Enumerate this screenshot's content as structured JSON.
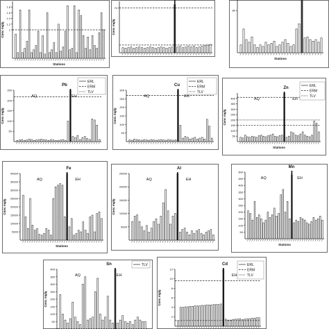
{
  "charts": [
    {
      "id": "p1",
      "type": "bar",
      "title": "",
      "xlabel": "Stations",
      "ylabel": "Conc mg/g",
      "ylim": [
        0,
        2
      ],
      "yticks": [
        "1",
        "1.2",
        "1.4",
        "1.6",
        "1.8"
      ],
      "tick_values": [
        1,
        1.2,
        1.4,
        1.6,
        1.8
      ],
      "divider_x_index": -1,
      "region_labels": [],
      "legend": [],
      "ref_lines": [
        {
          "y": 1.0,
          "style": "dashed"
        }
      ],
      "values": [
        0.85,
        0.2,
        1.7,
        0.2,
        0.35,
        0.6,
        1.7,
        0.2,
        0.3,
        0.45,
        0.95,
        0.2,
        0.8,
        0.15,
        1.6,
        0.2,
        0.3,
        0.55,
        0.2,
        1.2,
        0.25,
        0.4,
        0.95,
        1.85,
        0.3,
        0.35,
        1.85,
        0.2,
        1.7,
        1.5,
        0.8,
        0.35,
        0.75,
        0.3,
        0.8,
        0.45,
        0.35,
        0.9,
        1.6,
        1.0
      ]
    },
    {
      "id": "p2",
      "type": "bar",
      "title": "",
      "xlabel": "",
      "ylabel": "Conc mg/g",
      "ylim": [
        0,
        80
      ],
      "yticks": [
        "70"
      ],
      "tick_values": [
        70
      ],
      "divider_x_index": 19,
      "region_labels": [],
      "legend": [],
      "ref_lines": [
        {
          "y": 70,
          "style": "dashed"
        },
        {
          "y": 12,
          "style": "dashed"
        }
      ],
      "values": [
        8,
        7,
        8,
        9,
        7,
        8,
        9,
        8,
        7,
        8,
        9,
        8,
        7,
        8,
        9,
        8,
        7,
        8,
        9,
        75,
        9,
        10,
        8,
        9,
        10,
        9,
        10,
        8,
        9,
        10,
        11,
        12,
        13
      ]
    },
    {
      "id": "p3",
      "type": "bar",
      "title": "",
      "xlabel": "Stations",
      "ylabel": "",
      "ylim": [
        0,
        100
      ],
      "yticks": [
        "80"
      ],
      "tick_values": [
        80
      ],
      "divider_x_index": 22,
      "region_labels": [],
      "legend": [],
      "ref_lines": [],
      "values": [
        15,
        45,
        25,
        20,
        30,
        15,
        10,
        15,
        12,
        20,
        15,
        18,
        22,
        12,
        15,
        20,
        25,
        18,
        12,
        15,
        45,
        55,
        100,
        28,
        30,
        25,
        22,
        25,
        20,
        28
      ]
    },
    {
      "id": "p4",
      "type": "bar",
      "title": "Pb",
      "xlabel": "",
      "ylabel": "Conc mg/g",
      "ylim": [
        0,
        250
      ],
      "yticks": [
        "50",
        "100",
        "150",
        "200",
        "250"
      ],
      "tick_values": [
        50,
        100,
        150,
        200,
        250
      ],
      "divider_x_index": 22,
      "region_labels": [
        "AQ",
        "EH"
      ],
      "legend": [
        "ERL",
        "ERM",
        "TLV"
      ],
      "ref_lines": [
        {
          "y": 218,
          "style": "dashed"
        }
      ],
      "values": [
        5,
        8,
        10,
        6,
        8,
        12,
        10,
        6,
        8,
        10,
        12,
        10,
        8,
        6,
        10,
        8,
        5,
        6,
        8,
        10,
        5,
        100,
        250,
        25,
        20,
        30,
        10,
        20,
        25,
        15,
        10,
        110,
        105,
        80,
        10
      ]
    },
    {
      "id": "p5",
      "type": "bar",
      "title": "Cu",
      "xlabel": "",
      "ylabel": "Conc mg/g",
      "ylim": [
        0,
        300
      ],
      "yticks": [
        "50",
        "100",
        "150",
        "200",
        "250",
        "300"
      ],
      "tick_values": [
        50,
        100,
        150,
        200,
        250,
        300
      ],
      "divider_x_index": 20,
      "region_labels": [
        "AQ",
        "EH"
      ],
      "legend": [
        "ERL",
        "ERM",
        "TLV"
      ],
      "ref_lines": [
        {
          "y": 270,
          "style": "dashed"
        }
      ],
      "values": [
        10,
        8,
        15,
        12,
        10,
        8,
        12,
        10,
        8,
        12,
        10,
        8,
        10,
        12,
        10,
        8,
        12,
        10,
        8,
        10,
        300,
        95,
        20,
        30,
        25,
        15,
        20,
        25,
        15,
        20,
        25,
        15,
        130,
        90,
        20
      ]
    },
    {
      "id": "p6",
      "type": "bar",
      "title": "Zn",
      "xlabel": "Stations",
      "ylabel": "Conc mg/g",
      "ylim": [
        0,
        450
      ],
      "yticks": [
        "50",
        "100",
        "150",
        "200",
        "250",
        "300",
        "350",
        "400"
      ],
      "tick_values": [
        50,
        100,
        150,
        200,
        250,
        300,
        350,
        400
      ],
      "divider_x_index": 19,
      "region_labels": [
        "AQ",
        "EH"
      ],
      "legend": [
        "ERL",
        "ERM",
        "TLV"
      ],
      "ref_lines": [
        {
          "y": 410,
          "style": "dashed"
        },
        {
          "y": 200,
          "style": "dotted"
        },
        {
          "y": 150,
          "style": "dashed"
        }
      ],
      "values": [
        40,
        35,
        60,
        45,
        40,
        50,
        45,
        40,
        55,
        60,
        50,
        45,
        55,
        60,
        70,
        50,
        45,
        55,
        60,
        450,
        40,
        50,
        90,
        80,
        60,
        55,
        70,
        90,
        60,
        50,
        45,
        60,
        190,
        170,
        90
      ]
    },
    {
      "id": "p7",
      "type": "bar",
      "title": "Fe",
      "xlabel": "Stations",
      "ylabel": "Conc mg/g",
      "ylim": [
        0,
        40000
      ],
      "yticks": [
        "5000",
        "10000",
        "15000",
        "20000",
        "25000",
        "30000",
        "35000",
        "40000"
      ],
      "tick_values": [
        5000,
        10000,
        15000,
        20000,
        25000,
        30000,
        35000,
        40000
      ],
      "divider_x_index": 19,
      "region_labels": [
        "AQ",
        "EH"
      ],
      "legend": [],
      "ref_lines": [],
      "values": [
        27000,
        14000,
        7000,
        25000,
        9000,
        6000,
        7000,
        3500,
        3000,
        4000,
        7000,
        6000,
        3000,
        25000,
        32000,
        33000,
        34000,
        33000,
        14000,
        40000,
        8000,
        13000,
        3000,
        4000,
        6000,
        5000,
        11000,
        6000,
        4000,
        14000,
        15000,
        5000,
        16000,
        17000,
        13000
      ]
    },
    {
      "id": "p8",
      "type": "bar",
      "title": "Al",
      "xlabel": "",
      "ylabel": "Conc mg/g",
      "ylim": [
        0,
        25000
      ],
      "yticks": [
        "5000",
        "10000",
        "15000",
        "20000",
        "25000"
      ],
      "tick_values": [
        5000,
        10000,
        15000,
        20000,
        25000
      ],
      "divider_x_index": 19,
      "region_labels": [
        "AQ",
        "EH"
      ],
      "legend": [],
      "ref_lines": [],
      "values": [
        7000,
        9000,
        9500,
        7000,
        5000,
        3500,
        5500,
        3000,
        4500,
        7000,
        8000,
        6000,
        9000,
        14000,
        19000,
        11000,
        6000,
        9000,
        10000,
        25000,
        3000,
        4000,
        4500,
        3000,
        2000,
        3500,
        2500,
        3500,
        4000,
        2500,
        2000,
        3000,
        3500,
        4000,
        2000
      ]
    },
    {
      "id": "p9",
      "type": "bar",
      "title": "Mn",
      "xlabel": "Stations",
      "ylabel": "",
      "ylim": [
        0,
        500
      ],
      "yticks": [
        "50",
        "100",
        "150",
        "200",
        "250",
        "300",
        "350",
        "400",
        "450",
        "500"
      ],
      "tick_values": [
        50,
        100,
        150,
        200,
        250,
        300,
        350,
        400,
        450,
        500
      ],
      "divider_x_index": 20,
      "region_labels": [
        "AQ",
        "EH"
      ],
      "legend": [],
      "ref_lines": [],
      "values": [
        210,
        190,
        140,
        280,
        160,
        180,
        150,
        120,
        140,
        200,
        160,
        180,
        230,
        170,
        190,
        330,
        370,
        200,
        280,
        150,
        480,
        120,
        140,
        130,
        160,
        150,
        140,
        120,
        110,
        130,
        160,
        140,
        150,
        170,
        140
      ]
    },
    {
      "id": "p10",
      "type": "bar",
      "title": "Sn",
      "xlabel": "",
      "ylabel": "Conc mg/g",
      "ylim": [
        0,
        400
      ],
      "yticks": [
        "50",
        "100",
        "150",
        "200",
        "250",
        "300",
        "350",
        "400"
      ],
      "tick_values": [
        50,
        100,
        150,
        200,
        250,
        300,
        350,
        400
      ],
      "divider_x_index": 22,
      "region_labels": [
        "AQ",
        "EH"
      ],
      "legend": [
        "TLV"
      ],
      "ref_lines": [],
      "values": [
        230,
        100,
        60,
        40,
        70,
        180,
        80,
        50,
        30,
        300,
        350,
        60,
        70,
        80,
        250,
        340,
        100,
        60,
        80,
        220,
        60,
        40,
        400,
        40,
        60,
        90,
        50,
        40,
        50,
        30,
        60,
        80,
        60,
        50,
        50
      ]
    },
    {
      "id": "p11",
      "type": "bar",
      "title": "Cd",
      "xlabel": "",
      "ylabel": "Conc mg/g",
      "ylim": [
        0,
        12
      ],
      "yticks": [
        "2",
        "4",
        "6",
        "8",
        "10",
        "12"
      ],
      "tick_values": [
        2,
        4,
        6,
        8,
        10,
        12
      ],
      "divider_x_index": 19,
      "region_labels": [
        "EH"
      ],
      "legend": [
        "ERL",
        "ERM",
        "TLV"
      ],
      "ref_lines": [
        {
          "y": 9.6,
          "style": "dashed"
        },
        {
          "y": 1.2,
          "style": "dashed"
        }
      ],
      "values": [
        1.2,
        4.0,
        4.0,
        4.1,
        4.1,
        4.2,
        4.2,
        4.3,
        4.3,
        4.3,
        4.4,
        4.4,
        4.5,
        4.5,
        4.5,
        4.6,
        4.6,
        4.6,
        4.7,
        12,
        1.5,
        1.3,
        1.3,
        1.4,
        1.5,
        1.5,
        1.6,
        1.4,
        1.5,
        1.6,
        1.6,
        1.7,
        1.7,
        1.8,
        1.8
      ]
    }
  ]
}
